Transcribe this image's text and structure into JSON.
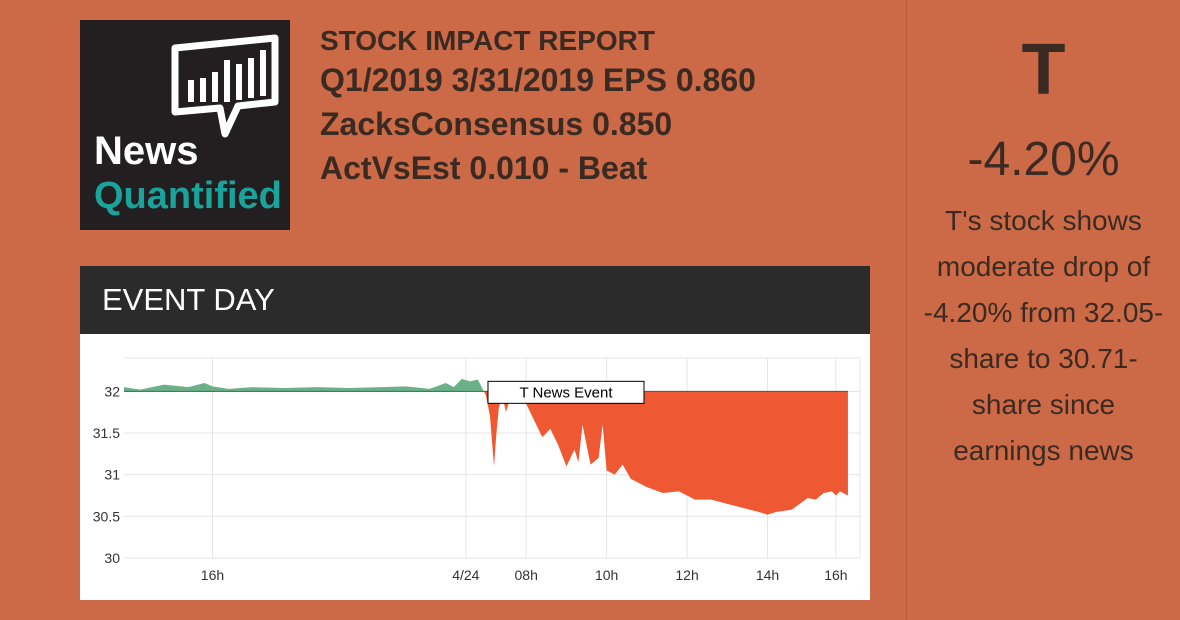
{
  "header": {
    "line1": "STOCK IMPACT REPORT",
    "line2": "Q1/2019 3/31/2019 EPS 0.860",
    "line3": "ZacksConsensus 0.850",
    "line4": "ActVsEst 0.010 - Beat"
  },
  "logo": {
    "word1": "News",
    "word2": "Quantified",
    "icon": "chat-bubble-bars-icon"
  },
  "event_bar": {
    "title": "EVENT DAY"
  },
  "side": {
    "ticker": "T",
    "change": "-4.20%",
    "description": "T's stock shows moderate drop of -4.20% from 32.05-share to 30.71-share since earnings news"
  },
  "colors": {
    "background": "#cc6a47",
    "up_fill": "#6ab187",
    "down_fill": "#ee5833",
    "dark_bar": "#2b2b2b"
  },
  "chart_data": {
    "type": "area",
    "baseline": 32.0,
    "ylim": [
      30,
      32.4
    ],
    "y_ticks": [
      32,
      31.5,
      31,
      30.5,
      30
    ],
    "y_tick_labels": [
      "32",
      "31.5",
      "31",
      "30.5",
      "30"
    ],
    "x_tick_labels": [
      "16h",
      "4/24",
      "08h",
      "10h",
      "12h",
      "14h",
      "16h"
    ],
    "x_tick_positions": [
      1.1,
      4.25,
      5.0,
      6.0,
      7.0,
      8.0,
      8.85
    ],
    "xlim": [
      0,
      9.15
    ],
    "annotation": {
      "text": "T News Event",
      "x": 4.8
    },
    "series": [
      {
        "x": [
          0,
          0.2,
          0.5,
          0.8,
          1.0,
          1.1,
          1.3,
          1.6,
          2.0,
          2.4,
          2.8,
          3.2,
          3.5,
          3.8,
          4.0,
          4.1,
          4.2,
          4.3,
          4.4,
          4.5,
          4.55,
          4.6,
          4.63,
          4.66,
          4.7,
          4.75,
          4.8,
          4.85,
          4.9,
          5.0,
          5.1,
          5.2,
          5.3,
          5.4,
          5.5,
          5.6,
          5.65,
          5.7,
          5.8,
          5.9,
          5.95,
          6.0,
          6.1,
          6.2,
          6.3,
          6.5,
          6.7,
          6.9,
          7.1,
          7.3,
          7.5,
          7.7,
          7.9,
          8.0,
          8.1,
          8.3,
          8.4,
          8.5,
          8.6,
          8.7,
          8.8,
          8.85,
          8.9,
          9.0
        ],
        "y": [
          32.05,
          32.02,
          32.08,
          32.05,
          32.1,
          32.06,
          32.03,
          32.05,
          32.04,
          32.05,
          32.04,
          32.05,
          32.06,
          32.03,
          32.1,
          32.05,
          32.15,
          32.12,
          32.14,
          31.95,
          31.7,
          31.1,
          31.5,
          31.8,
          31.95,
          31.75,
          31.92,
          31.85,
          32.0,
          31.85,
          31.65,
          31.45,
          31.55,
          31.35,
          31.1,
          31.3,
          31.15,
          31.6,
          31.12,
          31.2,
          31.6,
          31.05,
          31.0,
          31.12,
          30.95,
          30.85,
          30.78,
          30.8,
          30.7,
          30.7,
          30.65,
          30.6,
          30.55,
          30.52,
          30.55,
          30.58,
          30.65,
          30.72,
          30.7,
          30.78,
          30.8,
          30.75,
          30.8,
          30.75
        ]
      }
    ]
  }
}
